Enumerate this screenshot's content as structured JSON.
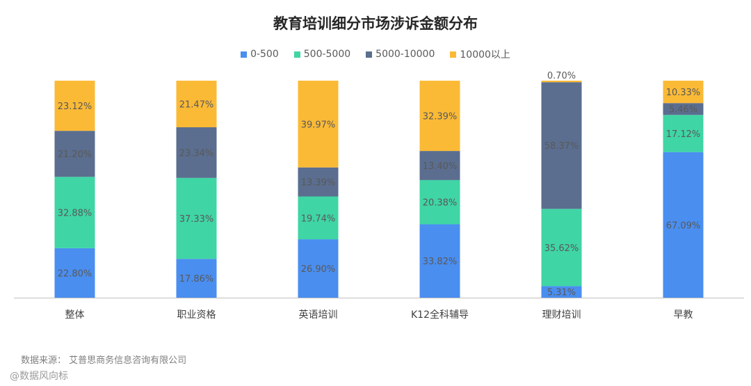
{
  "chart_data": {
    "type": "bar",
    "stacked": true,
    "title": "教育培训细分市场涉诉金额分布",
    "categories": [
      "整体",
      "职业资格",
      "英语培训",
      "K12全科辅导",
      "理财培训",
      "早教"
    ],
    "series": [
      {
        "name": "0-500",
        "color": "#4a8ef0",
        "values": [
          22.8,
          17.86,
          26.9,
          33.82,
          5.31,
          67.09
        ]
      },
      {
        "name": "500-5000",
        "color": "#3fd5a5",
        "values": [
          32.88,
          37.33,
          19.74,
          20.38,
          35.62,
          17.12
        ]
      },
      {
        "name": "5000-10000",
        "color": "#5b6e8f",
        "values": [
          21.2,
          23.34,
          13.39,
          13.4,
          58.37,
          5.46
        ]
      },
      {
        "name": "10000以上",
        "color": "#fbba36",
        "values": [
          23.12,
          21.47,
          39.97,
          32.39,
          0.7,
          10.33
        ]
      }
    ],
    "value_suffix": "%",
    "ylim": [
      0,
      100
    ],
    "legend_position": "top",
    "grid": false
  },
  "footer": {
    "source": "数据来源：  艾普思商务信息咨询有限公司",
    "watermark": "@数据风向标"
  }
}
